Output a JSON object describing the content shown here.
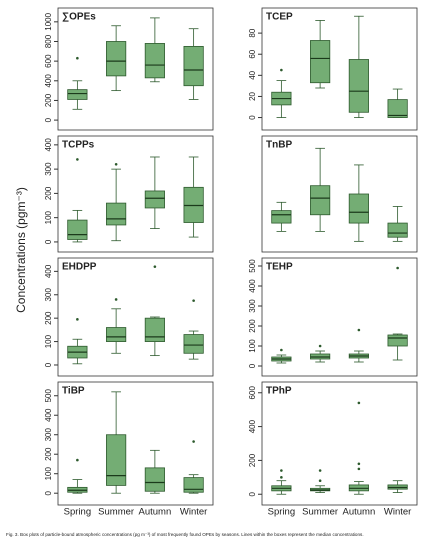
{
  "y_label": "Concentrations (pgm⁻³)",
  "caption": "Fig. 3. Box plots of particle-bound atmospheric concentrations (pg m⁻³) of most frequently found OPEs by seasons. Lines within the boxes represent the median concentrations.",
  "chart_data": [
    {
      "type": "box",
      "title": "∑OPEs",
      "color": "#74ad74",
      "ylim": [
        -60,
        1100
      ],
      "yticks": [
        0,
        200,
        400,
        600,
        800,
        1000
      ],
      "boxes": [
        {
          "whislo": 110,
          "q1": 210,
          "med": 270,
          "q3": 310,
          "whishi": 400,
          "fliers": [
            630
          ]
        },
        {
          "whislo": 300,
          "q1": 450,
          "med": 600,
          "q3": 800,
          "whishi": 960,
          "fliers": []
        },
        {
          "whislo": 390,
          "q1": 430,
          "med": 560,
          "q3": 780,
          "whishi": 1040,
          "fliers": []
        },
        {
          "whislo": 210,
          "q1": 350,
          "med": 510,
          "q3": 750,
          "whishi": 930,
          "fliers": []
        }
      ]
    },
    {
      "type": "box",
      "title": "TCEP",
      "color": "#74ad74",
      "ylim": [
        -8,
        100
      ],
      "yticks": [
        0,
        20,
        40,
        60,
        80
      ],
      "boxes": [
        {
          "whislo": 0,
          "q1": 12,
          "med": 18,
          "q3": 24,
          "whishi": 35,
          "fliers": [
            45
          ]
        },
        {
          "whislo": 28,
          "q1": 33,
          "med": 56,
          "q3": 73,
          "whishi": 92,
          "fliers": []
        },
        {
          "whislo": 0,
          "q1": 5,
          "med": 25,
          "q3": 55,
          "whishi": 96,
          "fliers": []
        },
        {
          "whislo": 0,
          "q1": 0,
          "med": 2,
          "q3": 17,
          "whishi": 27,
          "fliers": []
        }
      ]
    },
    {
      "type": "box",
      "title": "TCPPs",
      "color": "#74ad74",
      "ylim": [
        -25,
        420
      ],
      "yticks": [
        0,
        100,
        200,
        300,
        400
      ],
      "boxes": [
        {
          "whislo": 0,
          "q1": 10,
          "med": 30,
          "q3": 90,
          "whishi": 130,
          "fliers": [
            340
          ]
        },
        {
          "whislo": 5,
          "q1": 70,
          "med": 95,
          "q3": 160,
          "whishi": 300,
          "fliers": [
            320
          ]
        },
        {
          "whislo": 55,
          "q1": 140,
          "med": 180,
          "q3": 210,
          "whishi": 350,
          "fliers": []
        },
        {
          "whislo": 20,
          "q1": 80,
          "med": 150,
          "q3": 225,
          "whishi": 350,
          "fliers": []
        }
      ]
    },
    {
      "type": "box",
      "title": "TnBP",
      "color": "#74ad74",
      "ylim": [
        -5,
        125
      ],
      "boxes": [
        {
          "whislo": 15,
          "q1": 25,
          "med": 35,
          "q3": 40,
          "whishi": 50,
          "fliers": []
        },
        {
          "whislo": 15,
          "q1": 35,
          "med": 55,
          "q3": 70,
          "whishi": 115,
          "fliers": []
        },
        {
          "whislo": 3,
          "q1": 25,
          "med": 38,
          "q3": 60,
          "whishi": 95,
          "fliers": []
        },
        {
          "whislo": 3,
          "q1": 8,
          "med": 13,
          "q3": 25,
          "whishi": 45,
          "fliers": []
        }
      ]
    },
    {
      "type": "box",
      "title": "EHDPP",
      "color": "#74ad74",
      "ylim": [
        -30,
        440
      ],
      "yticks": [
        0,
        100,
        200,
        300,
        400
      ],
      "boxes": [
        {
          "whislo": 5,
          "q1": 30,
          "med": 55,
          "q3": 80,
          "whishi": 110,
          "fliers": [
            195
          ]
        },
        {
          "whislo": 50,
          "q1": 100,
          "med": 120,
          "q3": 160,
          "whishi": 240,
          "fliers": [
            280
          ]
        },
        {
          "whislo": 40,
          "q1": 100,
          "med": 120,
          "q3": 200,
          "whishi": 205,
          "fliers": [
            420
          ]
        },
        {
          "whislo": 25,
          "q1": 50,
          "med": 85,
          "q3": 130,
          "whishi": 145,
          "fliers": [
            275
          ]
        }
      ]
    },
    {
      "type": "box",
      "title": "TEHP",
      "color": "#74ad74",
      "ylim": [
        -30,
        520
      ],
      "yticks": [
        0,
        100,
        200,
        300,
        400,
        500
      ],
      "boxes": [
        {
          "whislo": 15,
          "q1": 25,
          "med": 35,
          "q3": 45,
          "whishi": 55,
          "fliers": [
            80
          ]
        },
        {
          "whislo": 20,
          "q1": 35,
          "med": 45,
          "q3": 60,
          "whishi": 75,
          "fliers": [
            100
          ]
        },
        {
          "whislo": 20,
          "q1": 40,
          "med": 50,
          "q3": 60,
          "whishi": 75,
          "fliers": [
            180
          ]
        },
        {
          "whislo": 30,
          "q1": 100,
          "med": 140,
          "q3": 155,
          "whishi": 160,
          "fliers": [
            490
          ]
        }
      ]
    },
    {
      "type": "box",
      "title": "TiBP",
      "color": "#74ad74",
      "ylim": [
        -40,
        550
      ],
      "yticks": [
        0,
        100,
        200,
        300,
        400,
        500
      ],
      "categories": [
        "Spring",
        "Summer",
        "Autumn",
        "Winter"
      ],
      "boxes": [
        {
          "whislo": 0,
          "q1": 5,
          "med": 15,
          "q3": 30,
          "whishi": 70,
          "fliers": [
            170
          ]
        },
        {
          "whislo": 0,
          "q1": 40,
          "med": 90,
          "q3": 300,
          "whishi": 520,
          "fliers": []
        },
        {
          "whislo": 0,
          "q1": 10,
          "med": 55,
          "q3": 130,
          "whishi": 220,
          "fliers": []
        },
        {
          "whislo": 0,
          "q1": 5,
          "med": 20,
          "q3": 80,
          "whishi": 95,
          "fliers": [
            265
          ]
        }
      ]
    },
    {
      "type": "box",
      "title": "TPhP",
      "color": "#74ad74",
      "ylim": [
        -40,
        640
      ],
      "yticks": [
        0,
        200,
        400,
        600
      ],
      "categories": [
        "Spring",
        "Summer",
        "Autumn",
        "Winter"
      ],
      "boxes": [
        {
          "whislo": 0,
          "q1": 20,
          "med": 35,
          "q3": 50,
          "whishi": 80,
          "fliers": [
            100,
            140
          ]
        },
        {
          "whislo": 10,
          "q1": 20,
          "med": 25,
          "q3": 35,
          "whishi": 50,
          "fliers": [
            80,
            140
          ]
        },
        {
          "whislo": 0,
          "q1": 20,
          "med": 35,
          "q3": 55,
          "whishi": 75,
          "fliers": [
            150,
            180,
            540
          ]
        },
        {
          "whislo": 10,
          "q1": 30,
          "med": 40,
          "q3": 55,
          "whishi": 80,
          "fliers": []
        }
      ]
    }
  ]
}
